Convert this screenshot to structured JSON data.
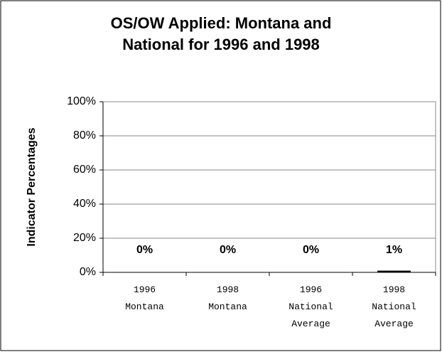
{
  "chart_data": {
    "type": "bar",
    "title": "OS/OW Applied: Montana and National for 1996 and 1998",
    "y_label": "Indicator Percentages",
    "categories": [
      "1996 Montana",
      "1998 Montana",
      "1996 National Average",
      "1998 National Average"
    ],
    "values": [
      0,
      0,
      0,
      1
    ],
    "value_labels": [
      "0%",
      "0%",
      "0%",
      "1%"
    ],
    "color": "#000000",
    "ylim": [
      0,
      100
    ],
    "yticks": [
      {
        "value": 0,
        "label": "0%"
      },
      {
        "value": 20,
        "label": "20%"
      },
      {
        "value": 40,
        "label": "40%"
      },
      {
        "value": 60,
        "label": "60%"
      },
      {
        "value": 80,
        "label": "80%"
      },
      {
        "value": 100,
        "label": "100%"
      }
    ],
    "grid": true
  }
}
